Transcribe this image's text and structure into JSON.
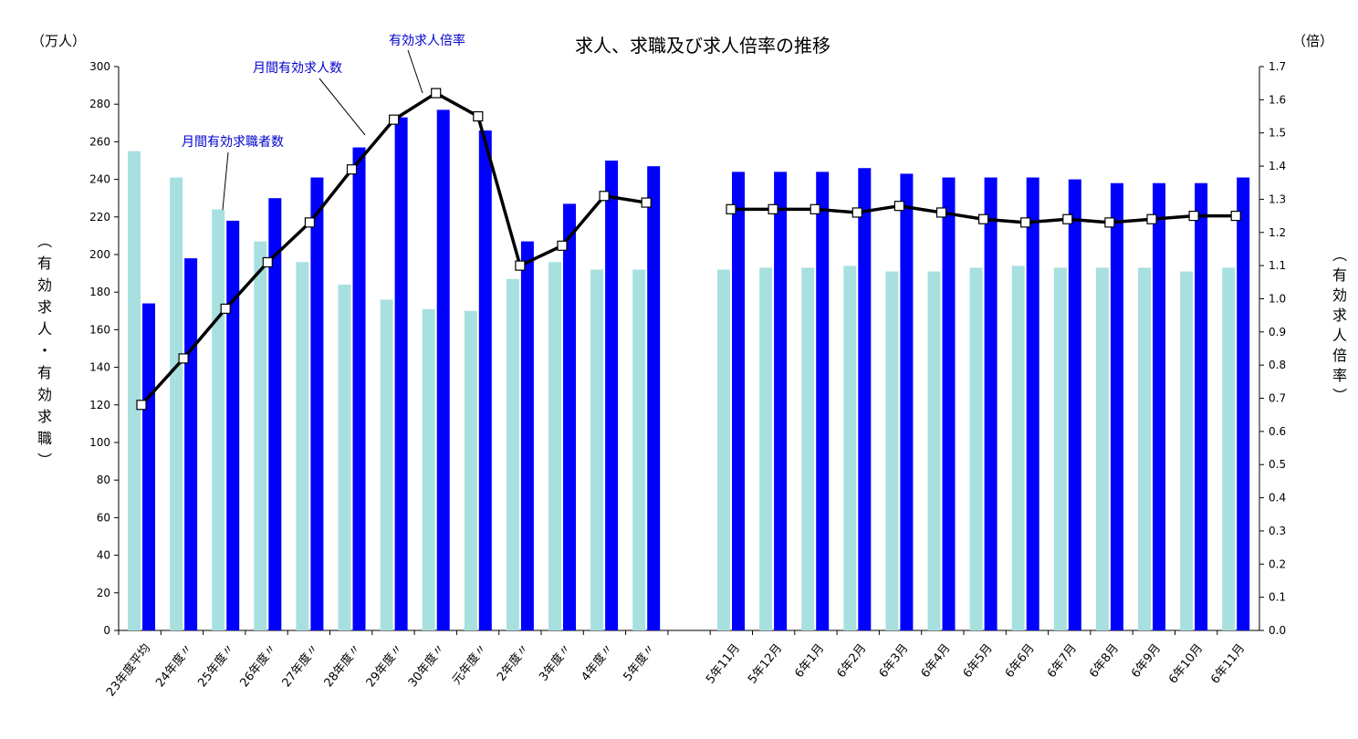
{
  "chart_data": {
    "type": "bar",
    "title": "求人、求職及び求人倍率の推移",
    "left_unit": "（万人）",
    "right_unit": "（倍）",
    "ylabel_left": "（有効求人・有効求職）",
    "ylabel_right": "（有効求人倍率）",
    "ylim_left": [
      0,
      300
    ],
    "ylim_right": [
      0.0,
      1.7
    ],
    "yticks_left": [
      "0",
      "20",
      "40",
      "60",
      "80",
      "100",
      "120",
      "140",
      "160",
      "180",
      "200",
      "220",
      "240",
      "260",
      "280",
      "300"
    ],
    "yticks_right": [
      "0.0",
      "0.1",
      "0.2",
      "0.3",
      "0.4",
      "0.5",
      "0.6",
      "0.7",
      "0.8",
      "0.9",
      "1.0",
      "1.1",
      "1.2",
      "1.3",
      "1.4",
      "1.5",
      "1.6",
      "1.7"
    ],
    "categories": [
      "23年度平均",
      "24年度〃",
      "25年度〃",
      "26年度〃",
      "27年度〃",
      "28年度〃",
      "29年度〃",
      "30年度〃",
      "元年度〃",
      "2年度〃",
      "3年度〃",
      "4年度〃",
      "5年度〃",
      "5年11月",
      "5年12月",
      "6年1月",
      "6年2月",
      "6年3月",
      "6年4月",
      "6年5月",
      "6年6月",
      "6年7月",
      "6年8月",
      "6年9月",
      "6年10月",
      "6年11月"
    ],
    "series": [
      {
        "name": "月間有効求職者数",
        "axis": "left",
        "color": "#a8e0e0",
        "values": [
          255,
          241,
          224,
          207,
          196,
          184,
          176,
          171,
          170,
          187,
          196,
          192,
          192,
          192,
          193,
          193,
          194,
          191,
          191,
          193,
          194,
          193,
          193,
          193,
          191,
          193
        ]
      },
      {
        "name": "月間有効求人数",
        "axis": "left",
        "color": "#0000ff",
        "values": [
          174,
          198,
          218,
          230,
          241,
          257,
          273,
          277,
          266,
          207,
          227,
          250,
          247,
          244,
          244,
          244,
          246,
          243,
          241,
          241,
          241,
          240,
          238,
          238,
          238,
          241
        ]
      },
      {
        "name": "有効求人倍率",
        "axis": "right",
        "type": "line",
        "color": "#000000",
        "values": [
          0.68,
          0.82,
          0.97,
          1.11,
          1.23,
          1.39,
          1.54,
          1.62,
          1.55,
          1.1,
          1.16,
          1.31,
          1.29,
          1.27,
          1.27,
          1.27,
          1.26,
          1.28,
          1.26,
          1.24,
          1.23,
          1.24,
          1.23,
          1.24,
          1.25,
          1.25
        ]
      }
    ],
    "grid": false,
    "legend": "annotations"
  }
}
